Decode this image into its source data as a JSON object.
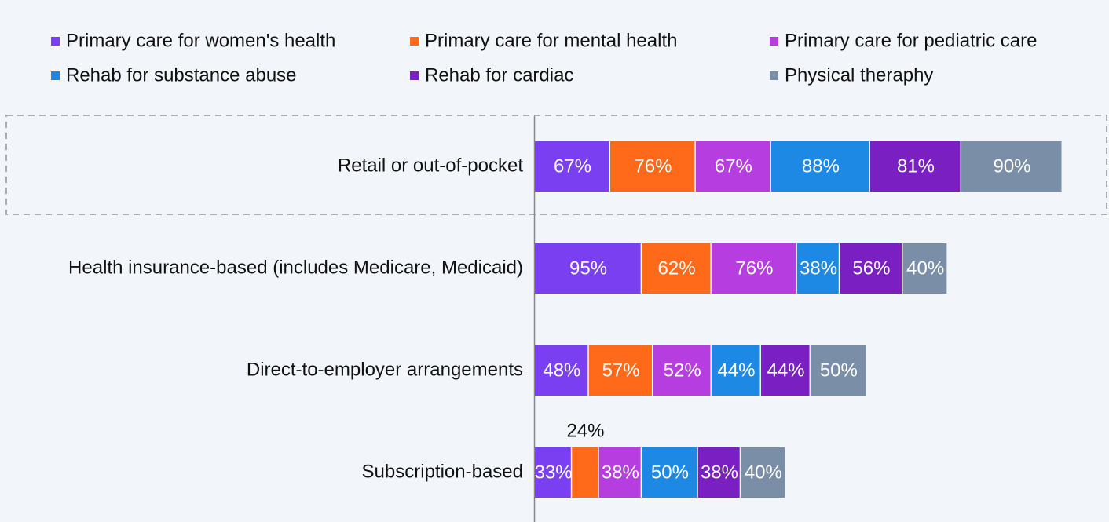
{
  "chart_data": {
    "type": "stacked-bar",
    "orientation": "horizontal",
    "categories": [
      "Retail or out-of-pocket",
      "Health insurance-based (includes Medicare, Medicaid)",
      "Direct-to-employer arrangements",
      "Subscription-based"
    ],
    "series": [
      {
        "name": "Primary care for women's health",
        "color": "#7b3ff2",
        "values": [
          67,
          95,
          48,
          33
        ],
        "value_labels": [
          "67%",
          "95%",
          "48%",
          "33%"
        ]
      },
      {
        "name": "Primary care for mental health",
        "color": "#ff6a1a",
        "values": [
          76,
          62,
          57,
          24
        ],
        "value_labels": [
          "76%",
          "62%",
          "57%",
          "24%"
        ]
      },
      {
        "name": "Primary care for pediatric care",
        "color": "#b63ee0",
        "values": [
          67,
          76,
          52,
          38
        ],
        "value_labels": [
          "67%",
          "76%",
          "52%",
          "38%"
        ]
      },
      {
        "name": "Rehab for substance abuse",
        "color": "#1e88e5",
        "values": [
          88,
          38,
          44,
          50
        ],
        "value_labels": [
          "88%",
          "38%",
          "44%",
          "50%"
        ]
      },
      {
        "name": "Rehab for cardiac",
        "color": "#7a1fc2",
        "values": [
          81,
          56,
          44,
          38
        ],
        "value_labels": [
          "81%",
          "56%",
          "44%",
          "38%"
        ]
      },
      {
        "name": "Physical theraphy",
        "color": "#7a8ea8",
        "values": [
          90,
          40,
          50,
          40
        ],
        "value_labels": [
          "90%",
          "40%",
          "50%",
          "40%"
        ]
      }
    ],
    "legend": "top"
  }
}
